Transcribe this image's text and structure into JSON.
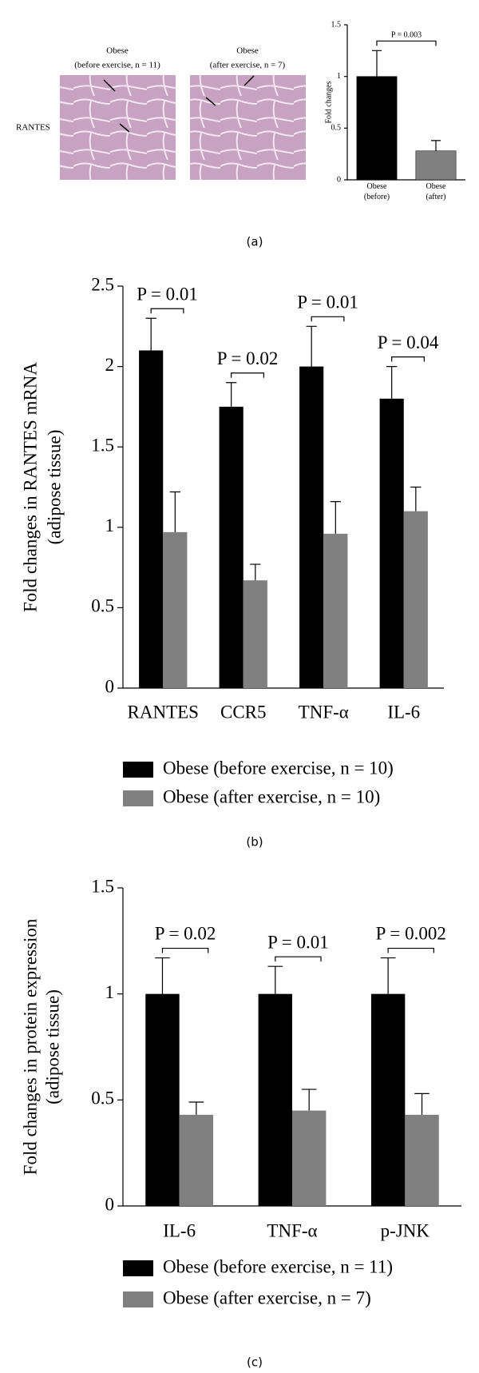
{
  "micrographs": {
    "row_label": "RANTES",
    "images": [
      {
        "title": "Obese",
        "subtitle": "(before exercise, n = 11)"
      },
      {
        "title": "Obese",
        "subtitle": "(after exercise, n = 7)"
      }
    ]
  },
  "chart_data": [
    {
      "type": "bar",
      "panel_label": "(a)",
      "ylabel": [
        "Fold changes"
      ],
      "categories": [
        "Obese (before)",
        "Obese (after)"
      ],
      "values": [
        1,
        0.28
      ],
      "errors": [
        0.25,
        0.1
      ],
      "colors": [
        "#000000",
        "#808080"
      ],
      "annotation": "P = 0.003",
      "ylim": [
        0,
        1.5
      ],
      "yticks": [
        0,
        0.5,
        1,
        1.5
      ]
    },
    {
      "type": "bar",
      "panel_label": "(b)",
      "ylabel": [
        "Fold changes in RANTES mRNA",
        "(adipose tissue)"
      ],
      "categories": [
        "RANTES",
        "CCR5",
        "TNF-α",
        "IL-6"
      ],
      "series": [
        {
          "name": "Obese (before exercise, n = 10)",
          "color": "#000000",
          "values": [
            2.1,
            1.75,
            2,
            1.8
          ],
          "errors": [
            0.2,
            0.15,
            0.25,
            0.2
          ]
        },
        {
          "name": "Obese (after exercise, n = 10)",
          "color": "#808080",
          "values": [
            0.97,
            0.67,
            0.96,
            1.1
          ],
          "errors": [
            0.25,
            0.1,
            0.2,
            0.15
          ]
        }
      ],
      "annotations": [
        "P = 0.01",
        "P = 0.02",
        "P = 0.01",
        "P = 0.04"
      ],
      "ylim": [
        0,
        2.5
      ],
      "yticks": [
        0,
        0.5,
        1,
        1.5,
        2,
        2.5
      ]
    },
    {
      "type": "bar",
      "panel_label": "(c)",
      "ylabel": [
        "Fold changes in protein expression",
        "(adipose tissue)"
      ],
      "categories": [
        "IL-6",
        "TNF-α",
        "p-JNK"
      ],
      "series": [
        {
          "name": "Obese (before exercise, n = 11)",
          "color": "#000000",
          "values": [
            1,
            1,
            1
          ],
          "errors": [
            0.17,
            0.13,
            0.17
          ]
        },
        {
          "name": "Obese (after exercise, n = 7)",
          "color": "#808080",
          "values": [
            0.43,
            0.45,
            0.43
          ],
          "errors": [
            0.06,
            0.1,
            0.1
          ]
        }
      ],
      "annotations": [
        "P = 0.02",
        "P = 0.01",
        "P = 0.002"
      ],
      "ylim": [
        0,
        1.5
      ],
      "yticks": [
        0,
        0.5,
        1,
        1.5
      ]
    }
  ]
}
